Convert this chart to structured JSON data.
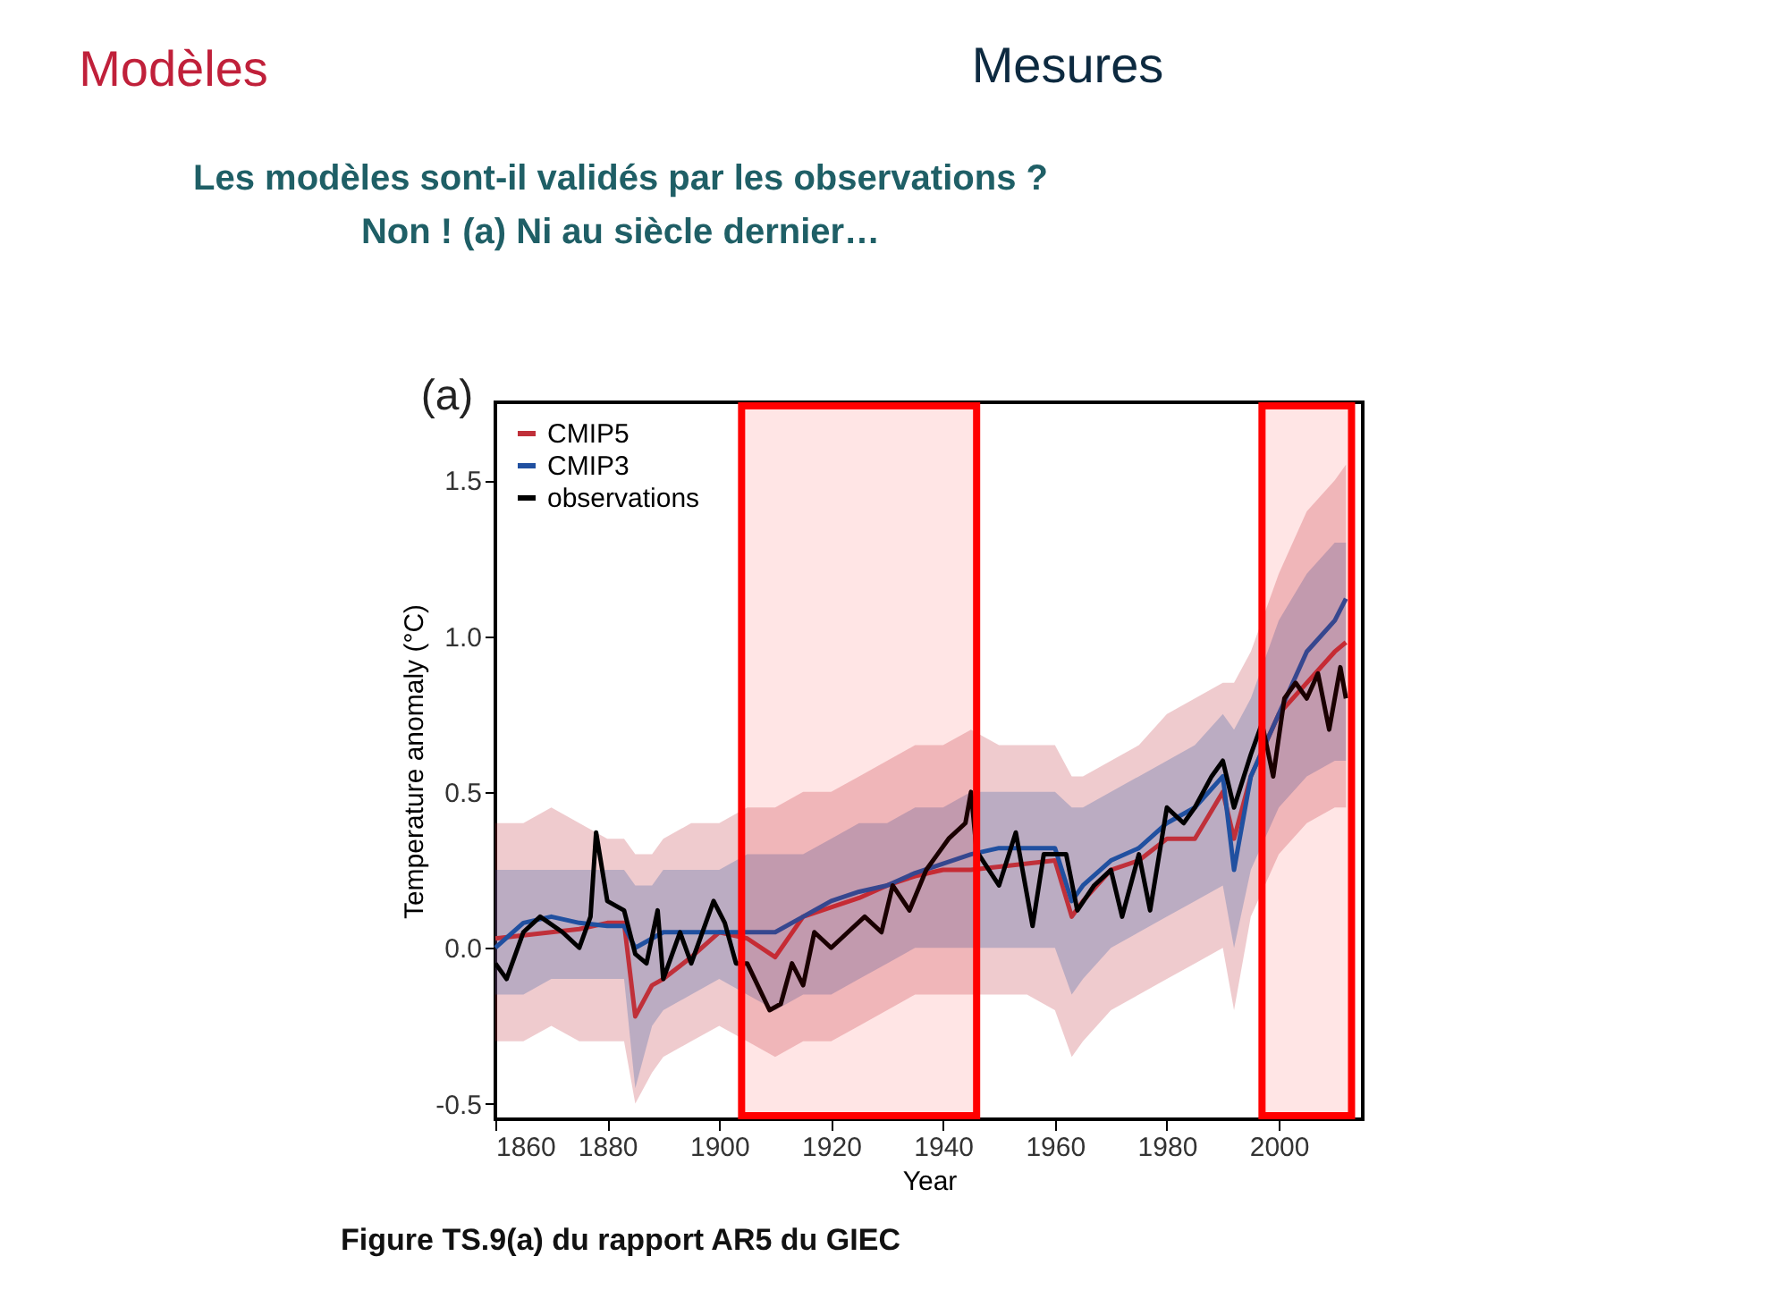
{
  "chart_data": {
    "type": "line",
    "title": "Les modèles sont-il validés par les observations ?",
    "subtitle": "Non ! (a) Ni au siècle dernier…",
    "xlabel": "Year",
    "ylabel": "Temperature anomaly (°C)",
    "annotations": [
      "Modèles",
      "Mesures",
      "(a)",
      "Figure TS.9(a) du rapport AR5 du GIEC"
    ],
    "xlim": [
      1860,
      2015
    ],
    "xticks": [
      1860,
      1880,
      1900,
      1920,
      1940,
      1960,
      1980,
      2000
    ],
    "ylim": [
      -0.55,
      1.75
    ],
    "yticks": [
      {
        "value": -0.5,
        "label": "-0.5"
      },
      {
        "value": 0,
        "label": "0.0"
      },
      {
        "value": 0.5,
        "label": "0.5"
      },
      {
        "value": 1,
        "label": "1.0"
      },
      {
        "value": 1.5,
        "label": "1.5"
      }
    ],
    "grid": false,
    "legend": "top left",
    "marker": "none",
    "line_style": "solid",
    "bands": [
      {
        "axis": "x",
        "from": 1904,
        "to": 1946,
        "label": null,
        "color": "#ff0000"
      },
      {
        "axis": "x",
        "from": 1997,
        "to": 2013,
        "label": null,
        "color": "#ff0000"
      }
    ],
    "series": [
      {
        "name": "CMIP5",
        "color": "#c0303a",
        "x": [
          1860,
          1865,
          1870,
          1875,
          1880,
          1883,
          1885,
          1888,
          1890,
          1895,
          1900,
          1905,
          1910,
          1915,
          1920,
          1925,
          1930,
          1935,
          1940,
          1945,
          1950,
          1955,
          1960,
          1963,
          1965,
          1970,
          1975,
          1980,
          1985,
          1990,
          1992,
          1995,
          2000,
          2005,
          2010,
          2012
        ],
        "values": [
          0.03,
          0.04,
          0.05,
          0.06,
          0.08,
          0.08,
          -0.22,
          -0.12,
          -0.1,
          -0.03,
          0.05,
          0.03,
          -0.03,
          0.1,
          0.13,
          0.16,
          0.2,
          0.23,
          0.25,
          0.25,
          0.26,
          0.27,
          0.28,
          0.1,
          0.15,
          0.25,
          0.28,
          0.35,
          0.35,
          0.5,
          0.35,
          0.55,
          0.75,
          0.85,
          0.95,
          0.98
        ],
        "lower": [
          -0.3,
          -0.3,
          -0.25,
          -0.3,
          -0.3,
          -0.3,
          -0.5,
          -0.4,
          -0.35,
          -0.3,
          -0.25,
          -0.3,
          -0.35,
          -0.3,
          -0.3,
          -0.25,
          -0.2,
          -0.15,
          -0.15,
          -0.15,
          -0.15,
          -0.15,
          -0.2,
          -0.35,
          -0.3,
          -0.2,
          -0.15,
          -0.1,
          -0.05,
          0.0,
          -0.2,
          0.1,
          0.3,
          0.4,
          0.45,
          0.45
        ],
        "upper": [
          0.4,
          0.4,
          0.45,
          0.4,
          0.35,
          0.35,
          0.3,
          0.3,
          0.35,
          0.4,
          0.4,
          0.45,
          0.45,
          0.5,
          0.5,
          0.55,
          0.6,
          0.65,
          0.65,
          0.7,
          0.65,
          0.65,
          0.65,
          0.55,
          0.55,
          0.6,
          0.65,
          0.75,
          0.8,
          0.85,
          0.85,
          0.95,
          1.2,
          1.4,
          1.5,
          1.55
        ]
      },
      {
        "name": "CMIP3",
        "color": "#2050a0",
        "x": [
          1860,
          1865,
          1870,
          1875,
          1880,
          1883,
          1885,
          1888,
          1890,
          1895,
          1900,
          1905,
          1910,
          1915,
          1920,
          1925,
          1930,
          1935,
          1940,
          1945,
          1950,
          1955,
          1960,
          1963,
          1965,
          1970,
          1975,
          1980,
          1985,
          1990,
          1992,
          1995,
          2000,
          2005,
          2010,
          2012
        ],
        "values": [
          0.0,
          0.08,
          0.1,
          0.08,
          0.07,
          0.07,
          0.0,
          0.03,
          0.05,
          0.05,
          0.05,
          0.05,
          0.05,
          0.1,
          0.15,
          0.18,
          0.2,
          0.24,
          0.27,
          0.3,
          0.32,
          0.32,
          0.32,
          0.15,
          0.2,
          0.28,
          0.32,
          0.4,
          0.45,
          0.55,
          0.25,
          0.55,
          0.75,
          0.95,
          1.05,
          1.12
        ],
        "lower": [
          -0.15,
          -0.15,
          -0.1,
          -0.1,
          -0.1,
          -0.1,
          -0.45,
          -0.25,
          -0.2,
          -0.15,
          -0.1,
          -0.15,
          -0.2,
          -0.15,
          -0.15,
          -0.1,
          -0.05,
          0.0,
          0.0,
          0.0,
          0.0,
          0.0,
          0.0,
          -0.15,
          -0.1,
          0.0,
          0.05,
          0.1,
          0.15,
          0.2,
          0.0,
          0.25,
          0.45,
          0.55,
          0.6,
          0.6
        ],
        "upper": [
          0.25,
          0.25,
          0.25,
          0.25,
          0.25,
          0.25,
          0.2,
          0.2,
          0.25,
          0.25,
          0.25,
          0.3,
          0.3,
          0.3,
          0.35,
          0.4,
          0.4,
          0.45,
          0.45,
          0.5,
          0.5,
          0.5,
          0.5,
          0.45,
          0.45,
          0.5,
          0.55,
          0.6,
          0.65,
          0.75,
          0.7,
          0.8,
          1.05,
          1.2,
          1.3,
          1.3
        ]
      },
      {
        "name": "observations",
        "color": "#000000",
        "x": [
          1860,
          1862,
          1865,
          1868,
          1872,
          1875,
          1877,
          1878,
          1880,
          1883,
          1885,
          1887,
          1889,
          1890,
          1893,
          1895,
          1897,
          1899,
          1901,
          1903,
          1905,
          1909,
          1911,
          1913,
          1915,
          1917,
          1920,
          1923,
          1926,
          1929,
          1931,
          1934,
          1937,
          1939,
          1941,
          1944,
          1945,
          1946,
          1950,
          1953,
          1956,
          1958,
          1962,
          1964,
          1967,
          1970,
          1972,
          1975,
          1977,
          1980,
          1983,
          1985,
          1988,
          1990,
          1992,
          1995,
          1997,
          1999,
          2001,
          2003,
          2005,
          2007,
          2009,
          2011,
          2012
        ],
        "values": [
          -0.05,
          -0.1,
          0.05,
          0.1,
          0.05,
          0.0,
          0.1,
          0.37,
          0.15,
          0.12,
          -0.02,
          -0.05,
          0.12,
          -0.1,
          0.05,
          -0.05,
          0.05,
          0.15,
          0.08,
          -0.05,
          -0.05,
          -0.2,
          -0.18,
          -0.05,
          -0.12,
          0.05,
          0.0,
          0.05,
          0.1,
          0.05,
          0.2,
          0.12,
          0.25,
          0.3,
          0.35,
          0.4,
          0.5,
          0.31,
          0.2,
          0.37,
          0.07,
          0.3,
          0.3,
          0.12,
          0.2,
          0.25,
          0.1,
          0.3,
          0.12,
          0.45,
          0.4,
          0.45,
          0.55,
          0.6,
          0.45,
          0.62,
          0.72,
          0.55,
          0.8,
          0.85,
          0.8,
          0.88,
          0.7,
          0.9,
          0.8
        ]
      }
    ]
  }
}
